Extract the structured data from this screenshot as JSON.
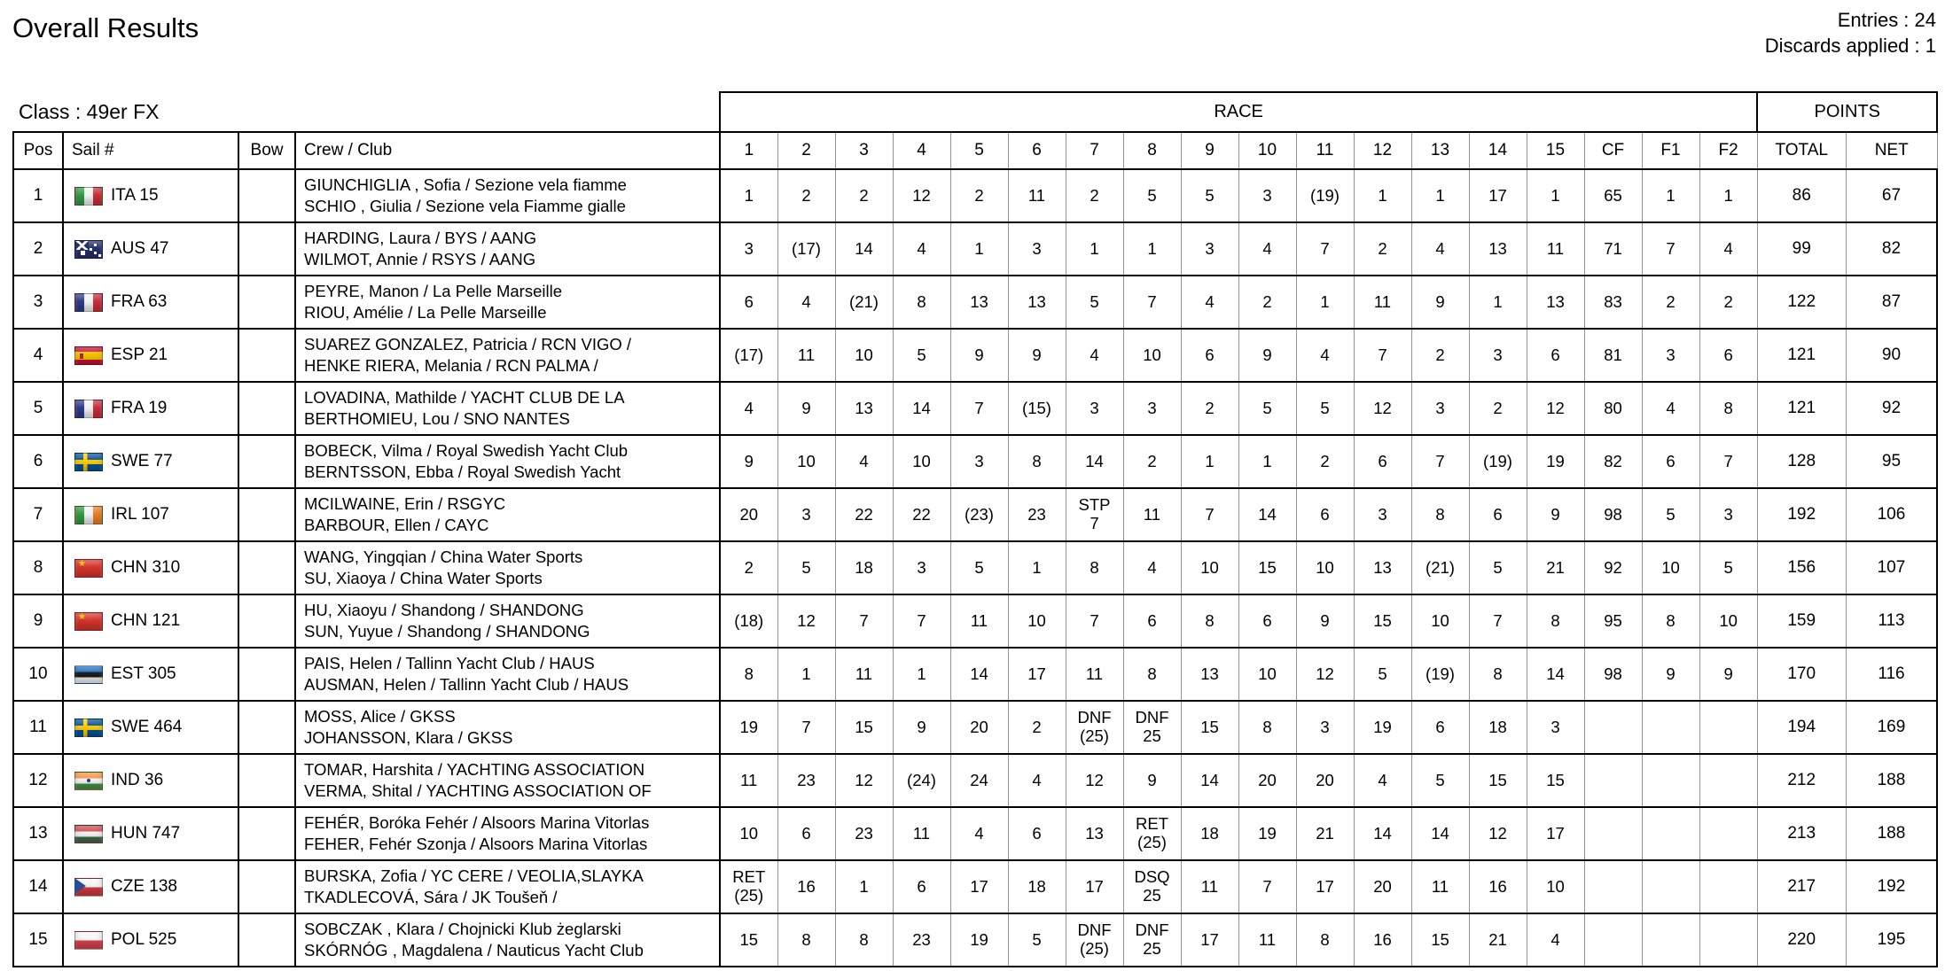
{
  "header": {
    "title": "Overall Results",
    "entries_label": "Entries : 24",
    "discards_label": "Discards applied : 1",
    "class_label": "Class : 49er FX"
  },
  "table": {
    "group_headers": {
      "race": "RACE",
      "points": "POINTS"
    },
    "columns": {
      "pos": "Pos",
      "sail": "Sail #",
      "bow": "Bow",
      "crew": "Crew / Club"
    },
    "race_columns": [
      "1",
      "2",
      "3",
      "4",
      "5",
      "6",
      "7",
      "8",
      "9",
      "10",
      "11",
      "12",
      "13",
      "14",
      "15",
      "CF",
      "F1",
      "F2"
    ],
    "points_columns": {
      "total": "TOTAL",
      "net": "NET"
    },
    "rows": [
      {
        "pos": "1",
        "country": "ITA",
        "sail": "ITA 15",
        "bow": "",
        "crew1": "GIUNCHIGLIA , Sofia / Sezione vela fiamme",
        "crew2": "SCHIO , Giulia / Sezione vela Fiamme gialle",
        "races": [
          "1",
          "2",
          "2",
          "12",
          "2",
          "11",
          "2",
          "5",
          "5",
          "3",
          "(19)",
          "1",
          "1",
          "17",
          "1",
          "65",
          "1",
          "1"
        ],
        "total": "86",
        "net": "67"
      },
      {
        "pos": "2",
        "country": "AUS",
        "sail": "AUS 47",
        "bow": "",
        "crew1": "HARDING, Laura / BYS / AANG",
        "crew2": "WILMOT, Annie / RSYS / AANG",
        "races": [
          "3",
          "(17)",
          "14",
          "4",
          "1",
          "3",
          "1",
          "1",
          "3",
          "4",
          "7",
          "2",
          "4",
          "13",
          "11",
          "71",
          "7",
          "4"
        ],
        "total": "99",
        "net": "82"
      },
      {
        "pos": "3",
        "country": "FRA",
        "sail": "FRA 63",
        "bow": "",
        "crew1": "PEYRE, Manon / La Pelle Marseille",
        "crew2": "RIOU, Amélie / La Pelle Marseille",
        "races": [
          "6",
          "4",
          "(21)",
          "8",
          "13",
          "13",
          "5",
          "7",
          "4",
          "2",
          "1",
          "11",
          "9",
          "1",
          "13",
          "83",
          "2",
          "2"
        ],
        "total": "122",
        "net": "87"
      },
      {
        "pos": "4",
        "country": "ESP",
        "sail": "ESP 21",
        "bow": "",
        "crew1": "SUAREZ GONZALEZ, Patricia / RCN VIGO /",
        "crew2": "HENKE RIERA, Melania / RCN PALMA /",
        "races": [
          "(17)",
          "11",
          "10",
          "5",
          "9",
          "9",
          "4",
          "10",
          "6",
          "9",
          "4",
          "7",
          "2",
          "3",
          "6",
          "81",
          "3",
          "6"
        ],
        "total": "121",
        "net": "90"
      },
      {
        "pos": "5",
        "country": "FRA",
        "sail": "FRA 19",
        "bow": "",
        "crew1": "LOVADINA, Mathilde / YACHT CLUB DE LA",
        "crew2": "BERTHOMIEU, Lou / SNO NANTES",
        "races": [
          "4",
          "9",
          "13",
          "14",
          "7",
          "(15)",
          "3",
          "3",
          "2",
          "5",
          "5",
          "12",
          "3",
          "2",
          "12",
          "80",
          "4",
          "8"
        ],
        "total": "121",
        "net": "92"
      },
      {
        "pos": "6",
        "country": "SWE",
        "sail": "SWE 77",
        "bow": "",
        "crew1": "BOBECK, Vilma / Royal Swedish Yacht Club",
        "crew2": "BERNTSSON, Ebba / Royal Swedish Yacht",
        "races": [
          "9",
          "10",
          "4",
          "10",
          "3",
          "8",
          "14",
          "2",
          "1",
          "1",
          "2",
          "6",
          "7",
          "(19)",
          "19",
          "82",
          "6",
          "7"
        ],
        "total": "128",
        "net": "95"
      },
      {
        "pos": "7",
        "country": "IRL",
        "sail": "IRL 107",
        "bow": "",
        "crew1": "MCILWAINE, Erin / RSGYC",
        "crew2": "BARBOUR, Ellen / CAYC",
        "races": [
          "20",
          "3",
          "22",
          "22",
          "(23)",
          "23",
          "STP\n7",
          "11",
          "7",
          "14",
          "6",
          "3",
          "8",
          "6",
          "9",
          "98",
          "5",
          "3"
        ],
        "total": "192",
        "net": "106"
      },
      {
        "pos": "8",
        "country": "CHN",
        "sail": "CHN 310",
        "bow": "",
        "crew1": "WANG, Yingqian / China Water Sports",
        "crew2": "SU, Xiaoya / China Water Sports",
        "races": [
          "2",
          "5",
          "18",
          "3",
          "5",
          "1",
          "8",
          "4",
          "10",
          "15",
          "10",
          "13",
          "(21)",
          "5",
          "21",
          "92",
          "10",
          "5"
        ],
        "total": "156",
        "net": "107"
      },
      {
        "pos": "9",
        "country": "CHN",
        "sail": "CHN 121",
        "bow": "",
        "crew1": "HU, Xiaoyu / Shandong / SHANDONG",
        "crew2": "SUN, Yuyue / Shandong / SHANDONG",
        "races": [
          "(18)",
          "12",
          "7",
          "7",
          "11",
          "10",
          "7",
          "6",
          "8",
          "6",
          "9",
          "15",
          "10",
          "7",
          "8",
          "95",
          "8",
          "10"
        ],
        "total": "159",
        "net": "113"
      },
      {
        "pos": "10",
        "country": "EST",
        "sail": "EST 305",
        "bow": "",
        "crew1": "PAIS, Helen / Tallinn Yacht Club / HAUS",
        "crew2": "AUSMAN, Helen / Tallinn Yacht Club / HAUS",
        "races": [
          "8",
          "1",
          "11",
          "1",
          "14",
          "17",
          "11",
          "8",
          "13",
          "10",
          "12",
          "5",
          "(19)",
          "8",
          "14",
          "98",
          "9",
          "9"
        ],
        "total": "170",
        "net": "116"
      },
      {
        "pos": "11",
        "country": "SWE",
        "sail": "SWE 464",
        "bow": "",
        "crew1": "MOSS, Alice / GKSS",
        "crew2": "JOHANSSON, Klara / GKSS",
        "races": [
          "19",
          "7",
          "15",
          "9",
          "20",
          "2",
          "DNF\n(25)",
          "DNF\n25",
          "15",
          "8",
          "3",
          "19",
          "6",
          "18",
          "3",
          "",
          "",
          ""
        ],
        "total": "194",
        "net": "169"
      },
      {
        "pos": "12",
        "country": "IND",
        "sail": "IND 36",
        "bow": "",
        "crew1": "TOMAR, Harshita / YACHTING ASSOCIATION",
        "crew2": "VERMA, Shital / YACHTING ASSOCIATION OF",
        "races": [
          "11",
          "23",
          "12",
          "(24)",
          "24",
          "4",
          "12",
          "9",
          "14",
          "20",
          "20",
          "4",
          "5",
          "15",
          "15",
          "",
          "",
          ""
        ],
        "total": "212",
        "net": "188"
      },
      {
        "pos": "13",
        "country": "HUN",
        "sail": "HUN 747",
        "bow": "",
        "crew1": "FEHÉR, Boróka Fehér / Alsoors Marina Vitorlas",
        "crew2": "FEHER, Fehér Szonja / Alsoors Marina Vitorlas",
        "races": [
          "10",
          "6",
          "23",
          "11",
          "4",
          "6",
          "13",
          "RET\n(25)",
          "18",
          "19",
          "21",
          "14",
          "14",
          "12",
          "17",
          "",
          "",
          ""
        ],
        "total": "213",
        "net": "188"
      },
      {
        "pos": "14",
        "country": "CZE",
        "sail": "CZE 138",
        "bow": "",
        "crew1": "BURSKA, Zofia / YC CERE / VEOLIA,SLAYKA",
        "crew2": "TKADLECOVÁ, Sára / JK Toušeň /",
        "races": [
          "RET\n(25)",
          "16",
          "1",
          "6",
          "17",
          "18",
          "17",
          "DSQ\n25",
          "11",
          "7",
          "17",
          "20",
          "11",
          "16",
          "10",
          "",
          "",
          ""
        ],
        "total": "217",
        "net": "192"
      },
      {
        "pos": "15",
        "country": "POL",
        "sail": "POL 525",
        "bow": "",
        "crew1": "SOBCZAK , Klara / Chojnicki Klub żeglarski",
        "crew2": "SKÓRNÓG , Magdalena / Nauticus Yacht Club",
        "races": [
          "15",
          "8",
          "8",
          "23",
          "19",
          "5",
          "DNF\n(25)",
          "DNF\n25",
          "17",
          "11",
          "8",
          "16",
          "15",
          "21",
          "4",
          "",
          "",
          ""
        ],
        "total": "220",
        "net": "195"
      }
    ]
  }
}
